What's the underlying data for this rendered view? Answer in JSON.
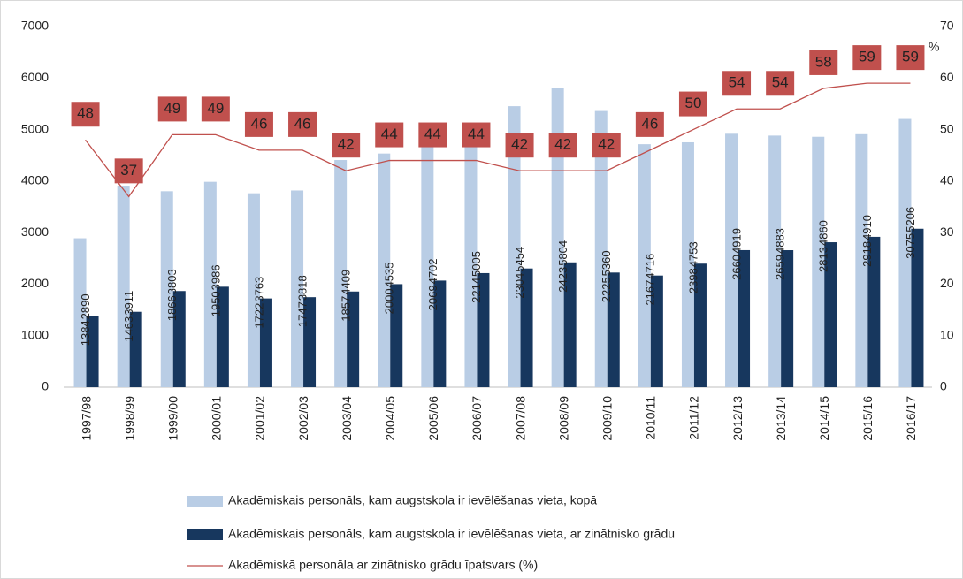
{
  "chart_data": {
    "type": "bar",
    "categories": [
      "1997/98",
      "1998/99",
      "1999/00",
      "2000/01",
      "2001/02",
      "2002/03",
      "2003/04",
      "2004/05",
      "2005/06",
      "2006/07",
      "2007/08",
      "2008/09",
      "2009/10",
      "2010/11",
      "2011/12",
      "2012/13",
      "2013/14",
      "2014/15",
      "2015/16",
      "2016/17"
    ],
    "series": [
      {
        "name": "Akadēmiskais personāls, kam augstskola ir ievēlēšanas vieta, kopā",
        "color": "#b9cde5",
        "values": [
          2890,
          3911,
          3803,
          3986,
          3763,
          3818,
          4409,
          4535,
          4702,
          5005,
          5454,
          5804,
          5360,
          4716,
          4753,
          4919,
          4883,
          4860,
          4910,
          5206
        ]
      },
      {
        "name": "Akadēmiskais personāls, kam augstskola ir ievēlēšanas vieta, ar zinātnisko grādu",
        "color": "#17375e",
        "values": [
          1384,
          1463,
          1866,
          1950,
          1722,
          1747,
          1857,
          2000,
          2069,
          2214,
          2304,
          2423,
          2225,
          2167,
          2398,
          2660,
          2659,
          2813,
          2918,
          3075
        ]
      },
      {
        "name": "Akadēmiskā personāla ar zinātnisko grādu īpatsvars (%)",
        "color": "#c0504d",
        "type": "line",
        "axis": "y2",
        "values": [
          48,
          37,
          49,
          49,
          46,
          46,
          42,
          44,
          44,
          44,
          42,
          42,
          42,
          46,
          50,
          54,
          54,
          58,
          59,
          59
        ]
      }
    ],
    "ylim": [
      0,
      7000
    ],
    "yticks": [
      0,
      1000,
      2000,
      3000,
      4000,
      5000,
      6000,
      7000
    ],
    "y2lim": [
      0,
      70
    ],
    "y2ticks": [
      0,
      10,
      20,
      30,
      40,
      50,
      60,
      70
    ],
    "y2label": "%"
  }
}
